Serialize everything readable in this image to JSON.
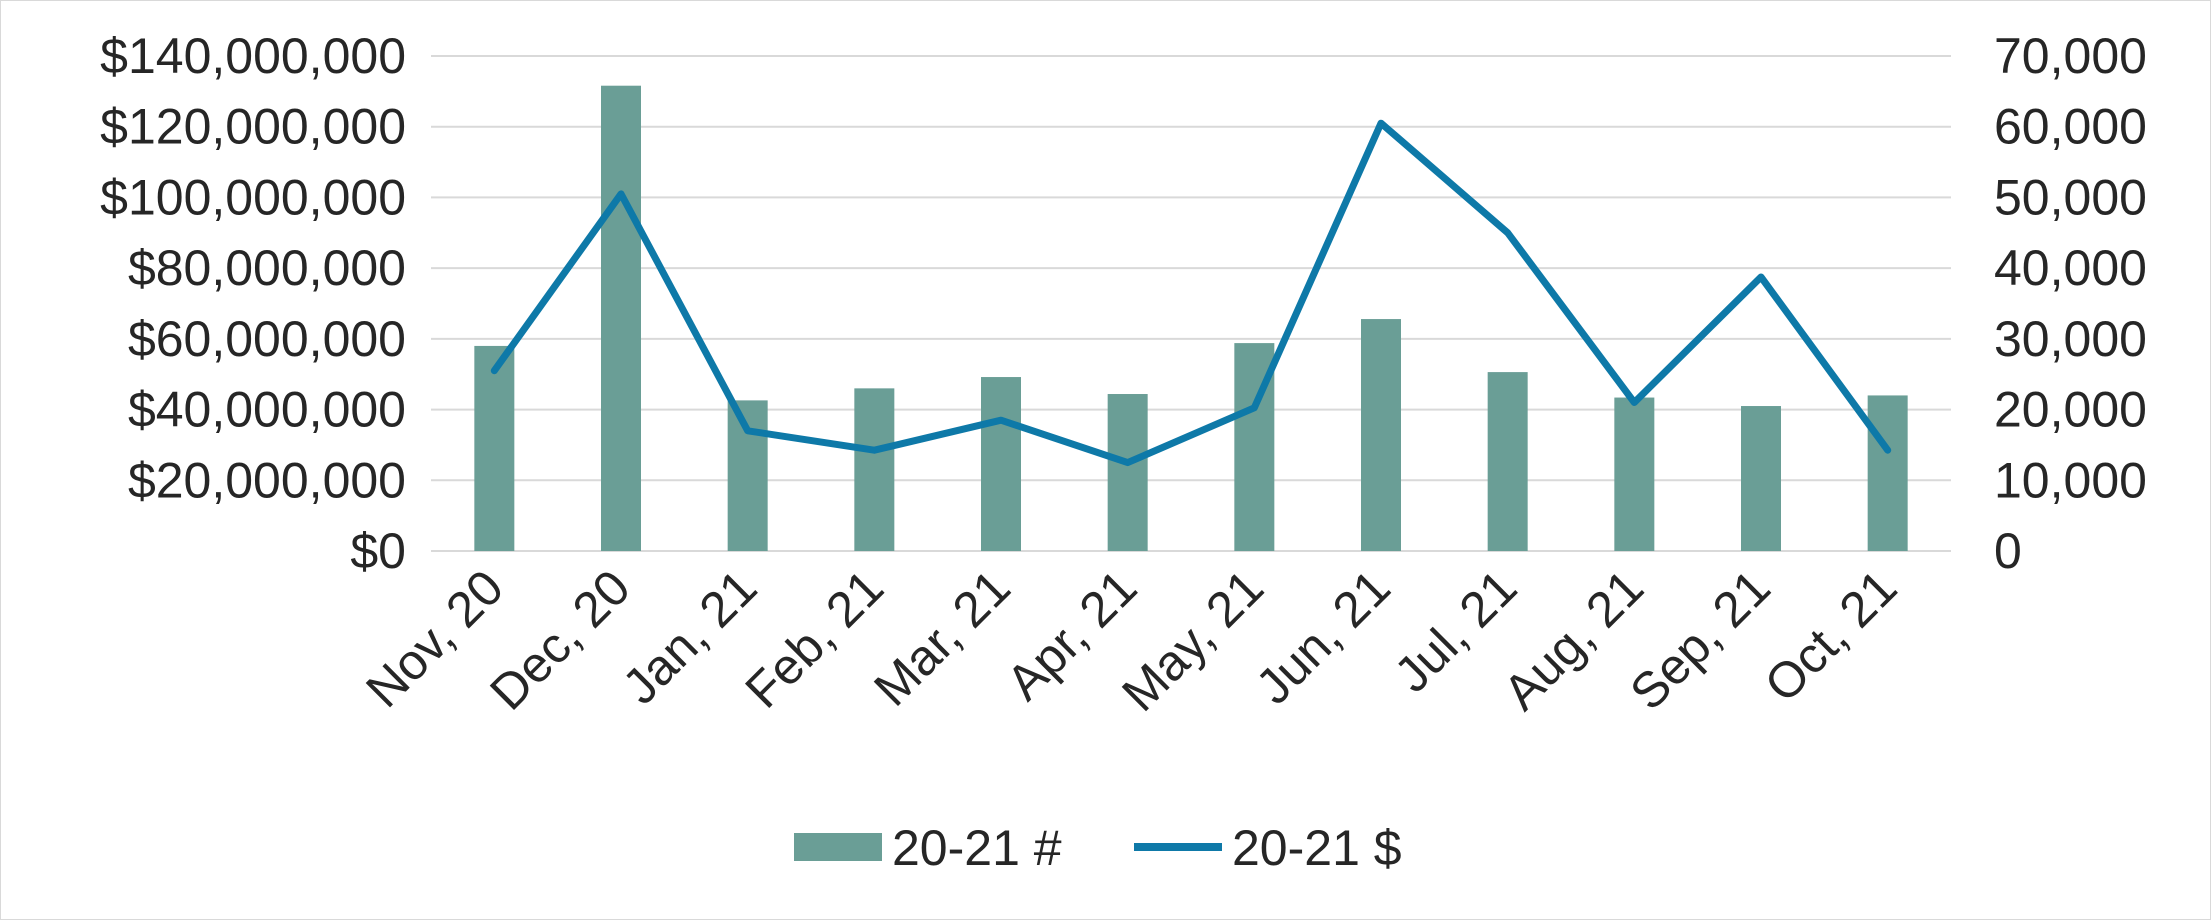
{
  "chart_data": {
    "type": "bar",
    "combo": "bar + line (dual axis)",
    "title": "",
    "categories": [
      "Nov, 20",
      "Dec, 20",
      "Jan, 21",
      "Feb, 21",
      "Mar, 21",
      "Apr, 21",
      "May, 21",
      "Jun, 21",
      "Jul, 21",
      "Aug, 21",
      "Sep, 21",
      "Oct, 21"
    ],
    "series": [
      {
        "name": "20-21 #",
        "kind": "bar",
        "axis": "right",
        "color": "#6a9e96",
        "values": [
          29000,
          65800,
          21300,
          23000,
          24600,
          22200,
          29400,
          32800,
          25300,
          21700,
          20500,
          22000
        ]
      },
      {
        "name": "20-21 $",
        "kind": "line",
        "axis": "left",
        "color": "#0e79a8",
        "values": [
          51000000,
          101000000,
          34000000,
          28500000,
          37000000,
          25000000,
          40500000,
          121000000,
          90000000,
          42000000,
          77500000,
          28500000
        ]
      }
    ],
    "y_left": {
      "min": 0,
      "max": 140000000,
      "ticks": [
        "$0",
        "$20,000,000",
        "$40,000,000",
        "$60,000,000",
        "$80,000,000",
        "$100,000,000",
        "$120,000,000",
        "$140,000,000"
      ]
    },
    "y_right": {
      "min": 0,
      "max": 70000,
      "ticks": [
        "0",
        "10,000",
        "20,000",
        "30,000",
        "40,000",
        "50,000",
        "60,000",
        "70,000"
      ]
    },
    "grid": true,
    "legend_position": "bottom-center",
    "colors": {
      "gridline": "#d9d9d9",
      "text": "#262626",
      "border": "#d9d9d9"
    }
  }
}
